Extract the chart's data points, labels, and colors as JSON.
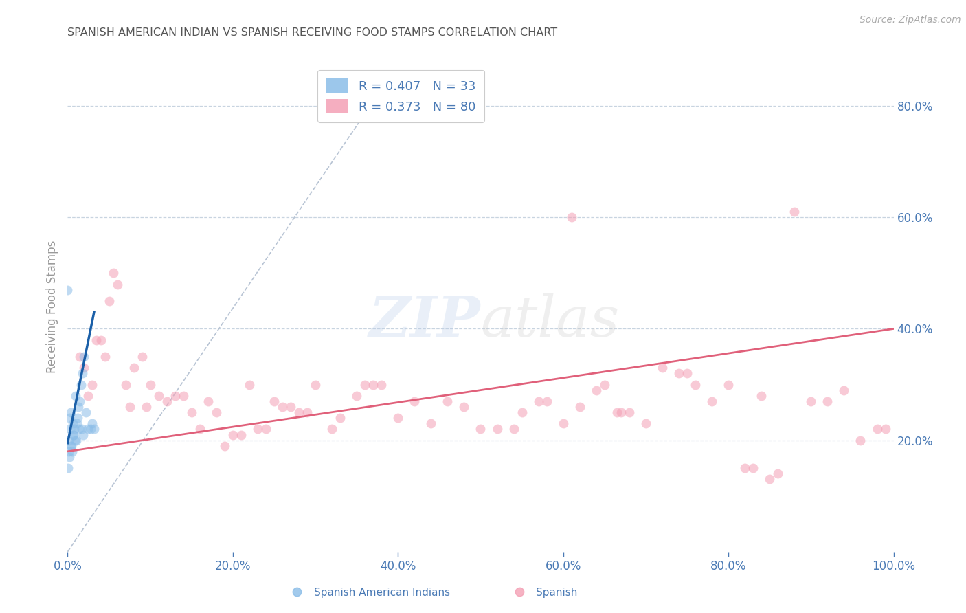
{
  "title": "SPANISH AMERICAN INDIAN VS SPANISH RECEIVING FOOD STAMPS CORRELATION CHART",
  "source": "Source: ZipAtlas.com",
  "xlabel_vals": [
    0,
    20,
    40,
    60,
    80,
    100
  ],
  "ylabel": "Receiving Food Stamps",
  "ylabel_vals": [
    20,
    40,
    60,
    80
  ],
  "xlim": [
    0,
    100
  ],
  "ylim": [
    0,
    88
  ],
  "legend_entries": [
    {
      "label": "R = 0.407   N = 33",
      "color": "#8bbde8"
    },
    {
      "label": "R = 0.373   N = 80",
      "color": "#f4a0b5"
    }
  ],
  "blue_scatter_x": [
    0.0,
    0.1,
    0.2,
    0.3,
    0.4,
    0.5,
    0.6,
    0.7,
    0.8,
    0.9,
    1.0,
    1.1,
    1.2,
    1.3,
    1.4,
    1.5,
    1.6,
    1.7,
    1.8,
    1.9,
    2.0,
    2.2,
    2.5,
    2.8,
    3.0,
    3.2,
    0.05,
    0.15,
    0.25,
    0.35,
    0.55,
    0.75,
    1.05
  ],
  "blue_scatter_y": [
    47,
    20,
    24,
    22,
    25,
    19,
    23,
    21,
    22,
    20,
    28,
    23,
    24,
    26,
    22,
    27,
    30,
    22,
    32,
    21,
    35,
    25,
    22,
    22,
    23,
    22,
    15,
    18,
    17,
    19,
    18,
    21,
    20
  ],
  "pink_scatter_x": [
    1.5,
    2.0,
    2.5,
    3.0,
    4.0,
    5.0,
    6.0,
    7.0,
    8.0,
    9.0,
    10.0,
    11.0,
    12.0,
    13.0,
    14.0,
    15.0,
    16.0,
    17.0,
    18.0,
    19.0,
    20.0,
    21.0,
    22.0,
    23.0,
    24.0,
    25.0,
    26.0,
    27.0,
    28.0,
    30.0,
    32.0,
    33.0,
    35.0,
    36.0,
    38.0,
    40.0,
    42.0,
    44.0,
    46.0,
    48.0,
    50.0,
    52.0,
    54.0,
    55.0,
    57.0,
    58.0,
    60.0,
    62.0,
    64.0,
    65.0,
    67.0,
    68.0,
    70.0,
    72.0,
    74.0,
    75.0,
    76.0,
    78.0,
    80.0,
    82.0,
    83.0,
    84.0,
    85.0,
    86.0,
    88.0,
    90.0,
    92.0,
    94.0,
    96.0,
    98.0,
    3.5,
    4.5,
    5.5,
    7.5,
    9.5,
    29.0,
    37.0,
    61.0,
    66.5,
    99.0
  ],
  "pink_scatter_y": [
    35,
    33,
    28,
    30,
    38,
    45,
    48,
    30,
    33,
    35,
    30,
    28,
    27,
    28,
    28,
    25,
    22,
    27,
    25,
    19,
    21,
    21,
    30,
    22,
    22,
    27,
    26,
    26,
    25,
    30,
    22,
    24,
    28,
    30,
    30,
    24,
    27,
    23,
    27,
    26,
    22,
    22,
    22,
    25,
    27,
    27,
    23,
    26,
    29,
    30,
    25,
    25,
    23,
    33,
    32,
    32,
    30,
    27,
    30,
    15,
    15,
    28,
    13,
    14,
    61,
    27,
    27,
    29,
    20,
    22,
    38,
    35,
    50,
    26,
    26,
    25,
    30,
    60,
    25,
    22
  ],
  "blue_line_x": [
    0.0,
    3.2
  ],
  "blue_line_y": [
    19.5,
    43
  ],
  "pink_line_x": [
    0,
    100
  ],
  "pink_line_y": [
    18,
    40
  ],
  "dashed_line_x": [
    0,
    38
  ],
  "dashed_line_y": [
    0,
    83
  ],
  "scatter_size": 100,
  "scatter_alpha": 0.55,
  "blue_color": "#8bbde8",
  "pink_color": "#f4a0b5",
  "blue_line_color": "#1a5fa8",
  "pink_line_color": "#e0607a",
  "dashed_line_color": "#b8c4d4",
  "grid_color": "#c8d4e0",
  "title_color": "#555555",
  "axis_tick_color": "#4a7ab5",
  "watermark_zip_color": "#b8cde8",
  "watermark_atlas_color": "#cccccc",
  "background_color": "#ffffff"
}
